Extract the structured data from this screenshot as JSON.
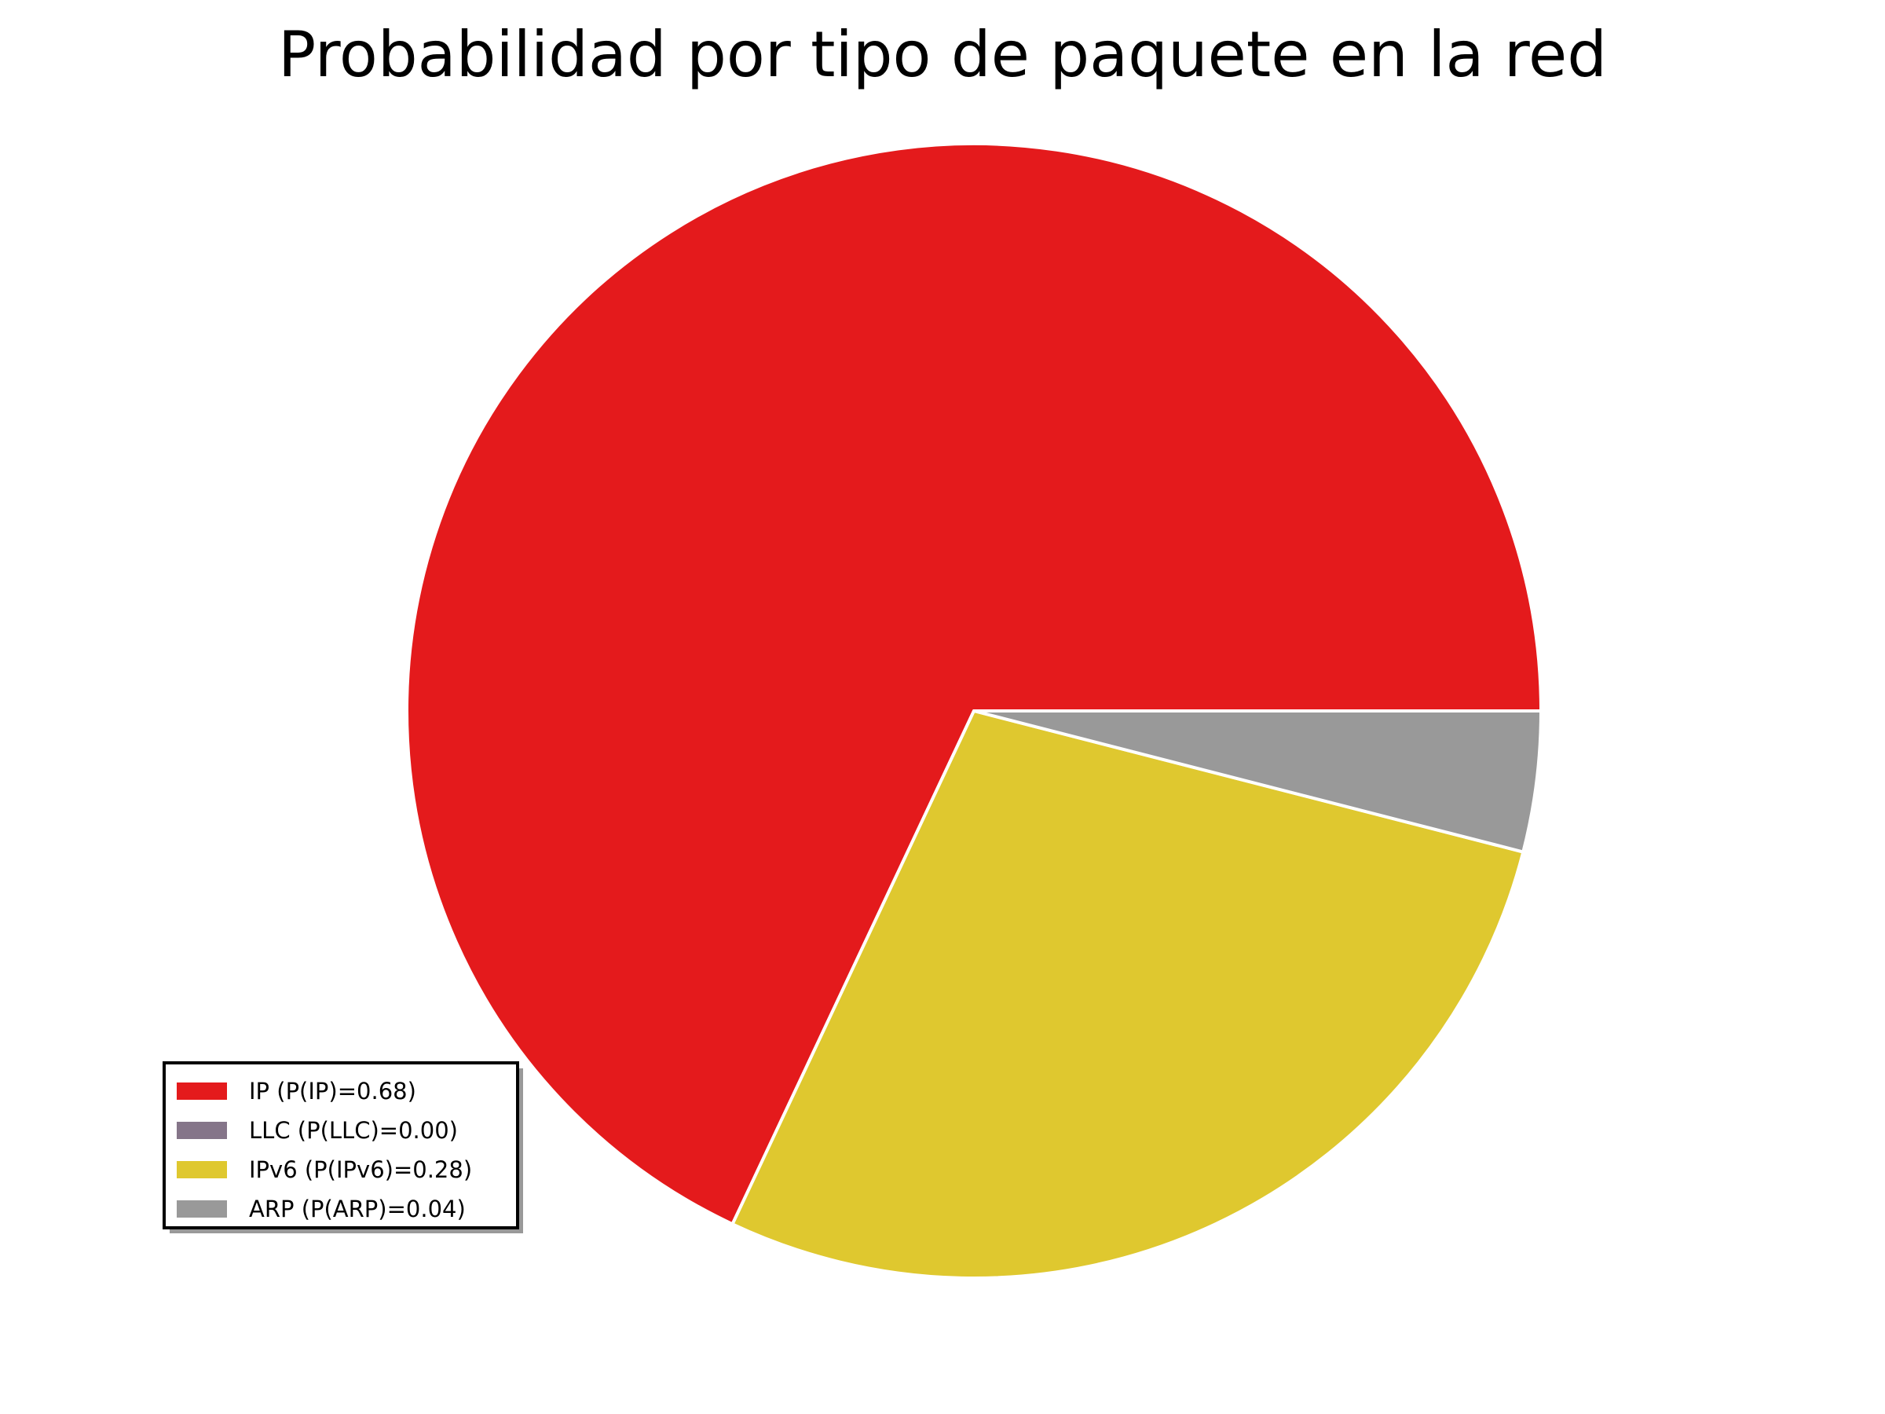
{
  "chart_data": {
    "type": "pie",
    "title": "Probabilidad por tipo de paquete en la red",
    "categories": [
      "IP",
      "LLC",
      "IPv6",
      "ARP"
    ],
    "values": [
      0.68,
      0.0,
      0.28,
      0.04
    ],
    "colors": [
      "#e41a1c",
      "#857589",
      "#dfc82f",
      "#999999"
    ],
    "legend": {
      "placement": "lower-left",
      "entries": [
        "IP (P(IP)=0.68)",
        "LLC (P(LLC)=0.00)",
        "IPv6 (P(IPv6)=0.28)",
        "ARP (P(ARP)=0.04)"
      ]
    }
  }
}
